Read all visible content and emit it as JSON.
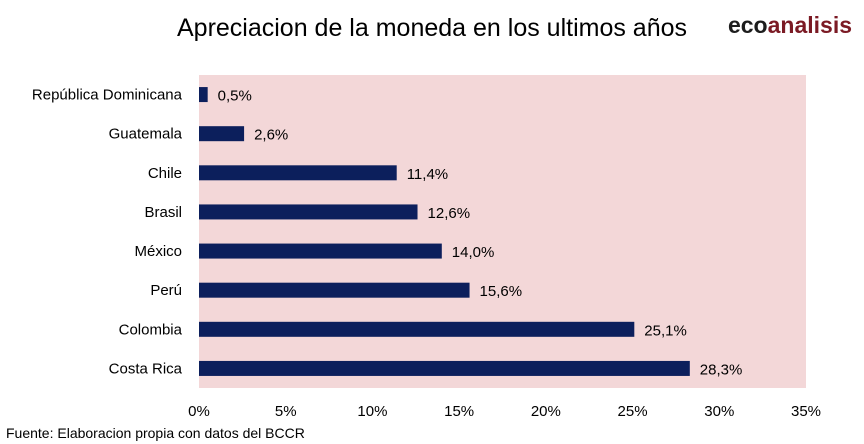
{
  "brand": {
    "part1": "eco",
    "part2": "analisis"
  },
  "source": "Fuente: Elaboracion propia con datos del BCCR",
  "chart_data": {
    "type": "bar",
    "orientation": "horizontal",
    "title": "Apreciacion de la moneda en los ultimos años",
    "xlabel": "",
    "ylabel": "",
    "categories": [
      "República Dominicana",
      "Guatemala",
      "Chile",
      "Brasil",
      "México",
      "Perú",
      "Colombia",
      "Costa Rica"
    ],
    "values": [
      0.5,
      2.6,
      11.4,
      12.6,
      14.0,
      15.6,
      25.1,
      28.3
    ],
    "data_labels": [
      "0,5%",
      "2,6%",
      "11,4%",
      "12,6%",
      "14,0%",
      "15,6%",
      "25,1%",
      "28,3%"
    ],
    "xlim": [
      0,
      35
    ],
    "xticks": [
      0,
      5,
      10,
      15,
      20,
      25,
      30,
      35
    ],
    "xtick_labels": [
      "0%",
      "5%",
      "10%",
      "15%",
      "20%",
      "25%",
      "30%",
      "35%"
    ],
    "grid": false,
    "legend": "none",
    "colors": {
      "bar": "#0c1f5c",
      "plot_bg": "#f3d7d8"
    }
  }
}
